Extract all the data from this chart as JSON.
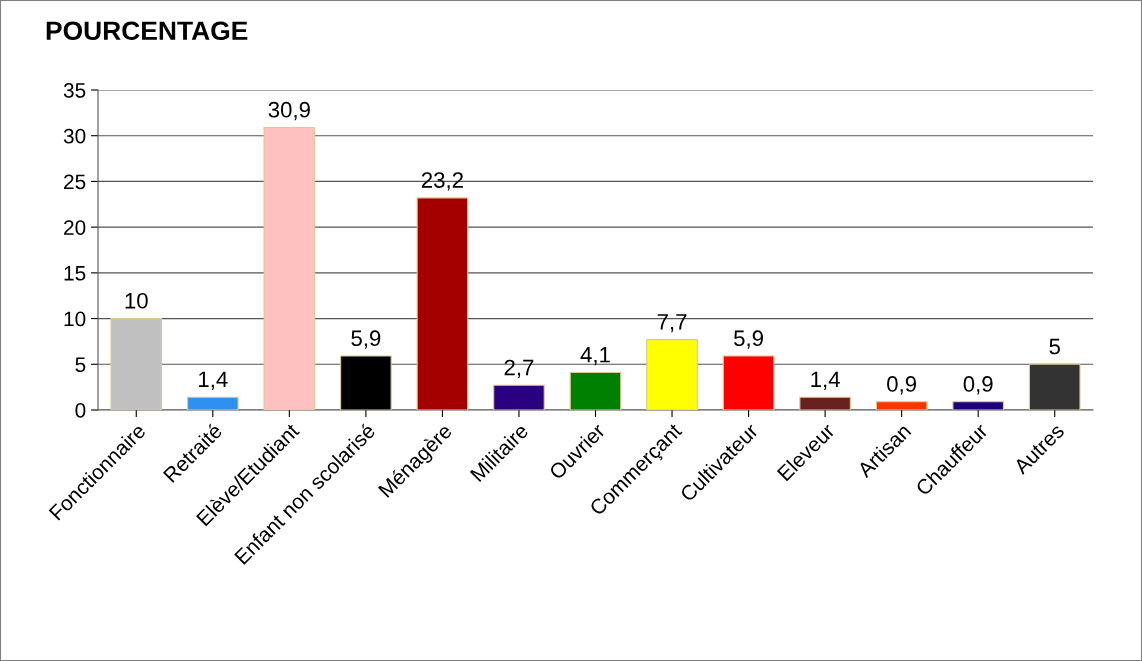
{
  "chart_data": {
    "type": "bar",
    "title": "POURCENTAGE",
    "categories": [
      "Fonctionnaire",
      "Retraité",
      "Elève/Etudiant",
      "Enfant non scolarisé",
      "Ménagère",
      "Militaire",
      "Ouvrier",
      "Commerçant",
      "Cultivateur",
      "Eleveur",
      "Artisan",
      "Chauffeur",
      "Autres"
    ],
    "values": [
      10,
      1.4,
      30.9,
      5.9,
      23.2,
      2.7,
      4.1,
      7.7,
      5.9,
      1.4,
      0.9,
      0.9,
      5
    ],
    "value_labels": [
      "10",
      "1,4",
      "30,9",
      "5,9",
      "23,2",
      "2,7",
      "4,1",
      "7,7",
      "5,9",
      "1,4",
      "0,9",
      "0,9",
      "5"
    ],
    "colors": [
      "#c0c0c0",
      "#3090f0",
      "#ffc0c0",
      "#000000",
      "#a50000",
      "#2a0080",
      "#008000",
      "#ffff00",
      "#ff0000",
      "#6b2020",
      "#ff3300",
      "#1a0080",
      "#333333"
    ],
    "ylim": [
      0,
      35
    ],
    "yticks": [
      0,
      5,
      10,
      15,
      20,
      25,
      30,
      35
    ],
    "grid": "y",
    "legend": false
  }
}
